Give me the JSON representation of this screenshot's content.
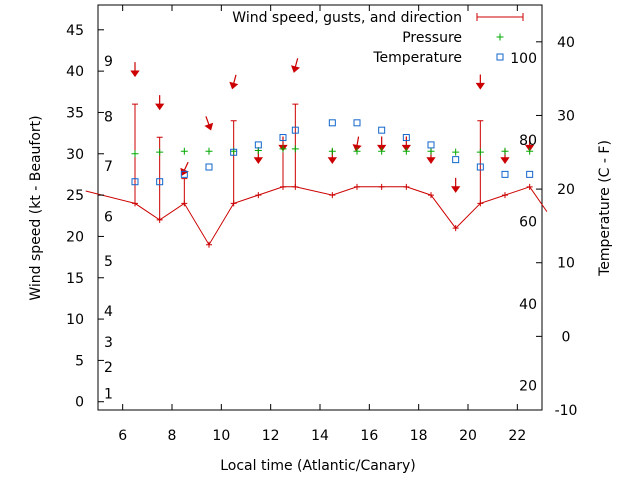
{
  "chart_data": {
    "type": "line",
    "xlabel": "Local time (Atlantic/Canary)",
    "ylabel": "Wind speed (kt - Beaufort)",
    "y2label": "Temperature (C - F)",
    "xlim": [
      5,
      23
    ],
    "ylim": [
      -1,
      48
    ],
    "y2lim": [
      -10,
      45
    ],
    "grid": false,
    "legend_position": "top-right",
    "x_ticks": [
      6,
      8,
      10,
      12,
      14,
      16,
      18,
      20,
      22
    ],
    "y_ticks": [
      0,
      5,
      10,
      15,
      20,
      25,
      30,
      35,
      40,
      45
    ],
    "y2_ticks": [
      -10,
      0,
      10,
      20,
      30,
      40
    ],
    "beaufort_labels": [
      {
        "text": "1",
        "y": 1
      },
      {
        "text": "2",
        "y": 4.2
      },
      {
        "text": "3",
        "y": 7.2
      },
      {
        "text": "4",
        "y": 11
      },
      {
        "text": "5",
        "y": 17
      },
      {
        "text": "6",
        "y": 22.4
      },
      {
        "text": "7",
        "y": 28.5
      },
      {
        "text": "8",
        "y": 34.5
      },
      {
        "text": "9",
        "y": 41.2
      }
    ],
    "fahrenheit_labels": [
      {
        "text": "20",
        "y2": -6.7
      },
      {
        "text": "40",
        "y2": 4.4
      },
      {
        "text": "60",
        "y2": 15.6
      },
      {
        "text": "80",
        "y2": 26.7
      },
      {
        "text": "100",
        "y2": 37.8
      }
    ],
    "series": [
      {
        "name": "Wind speed, gusts, and direction",
        "color": "#cc0000",
        "x": [
          4.5,
          6.5,
          7.5,
          8.5,
          9.5,
          10.5,
          11.5,
          12.5,
          13,
          14.5,
          15.5,
          16.5,
          17.5,
          18.5,
          19.5,
          20.5,
          21.5,
          22.5,
          23.2
        ],
        "values": [
          25.5,
          24,
          22,
          24,
          19,
          24,
          25,
          26,
          26,
          25,
          26,
          26,
          26,
          25,
          21,
          24,
          25,
          26,
          23
        ],
        "gusts": [
          null,
          36,
          32,
          27,
          null,
          34,
          null,
          31,
          36,
          null,
          null,
          null,
          null,
          null,
          null,
          34,
          null,
          null,
          null
        ]
      },
      {
        "name": "Pressure",
        "color": "#00aa00",
        "x": [
          6.5,
          7.5,
          8.5,
          9.5,
          10.5,
          11.5,
          12.5,
          13,
          14.5,
          15.5,
          16.5,
          17.5,
          18.5,
          19.5,
          20.5,
          21.5,
          22.5
        ],
        "values": [
          30,
          30.2,
          30.3,
          30.3,
          30.3,
          30.4,
          30.6,
          30.6,
          30.3,
          30.3,
          30.3,
          30.3,
          30.3,
          30.2,
          30.2,
          30.3,
          30.3
        ]
      },
      {
        "name": "Temperature",
        "color": "#1166cc",
        "axis": "right",
        "x": [
          6.5,
          7.5,
          8.5,
          9.5,
          10.5,
          11.5,
          12.5,
          13,
          14.5,
          15.5,
          16.5,
          17.5,
          18.5,
          19.5,
          20.5,
          21.5,
          22.5
        ],
        "values": [
          21,
          21,
          22,
          23,
          25,
          26,
          27,
          28,
          29,
          29,
          28,
          27,
          26,
          24,
          23,
          22,
          22
        ]
      }
    ],
    "direction_arrows": [
      {
        "x": 6.5,
        "y": 40,
        "angle": 0
      },
      {
        "x": 7.5,
        "y": 36,
        "angle": 0
      },
      {
        "x": 8.5,
        "y": 28,
        "angle": 25
      },
      {
        "x": 9.5,
        "y": 33.5,
        "angle": -20
      },
      {
        "x": 10.5,
        "y": 38.5,
        "angle": 15
      },
      {
        "x": 11.5,
        "y": 29.5,
        "angle": 0
      },
      {
        "x": 12.5,
        "y": 31,
        "angle": 0
      },
      {
        "x": 13,
        "y": 40.5,
        "angle": 15
      },
      {
        "x": 14.5,
        "y": 29.5,
        "angle": 0
      },
      {
        "x": 15.5,
        "y": 31,
        "angle": 10
      },
      {
        "x": 16.5,
        "y": 31,
        "angle": 0
      },
      {
        "x": 17.5,
        "y": 31,
        "angle": 0
      },
      {
        "x": 18.5,
        "y": 29.5,
        "angle": 0
      },
      {
        "x": 19.5,
        "y": 26,
        "angle": 0
      },
      {
        "x": 20.5,
        "y": 38.5,
        "angle": 0
      },
      {
        "x": 21.5,
        "y": 29.5,
        "angle": 0
      },
      {
        "x": 22.5,
        "y": 31,
        "angle": 0
      }
    ]
  }
}
